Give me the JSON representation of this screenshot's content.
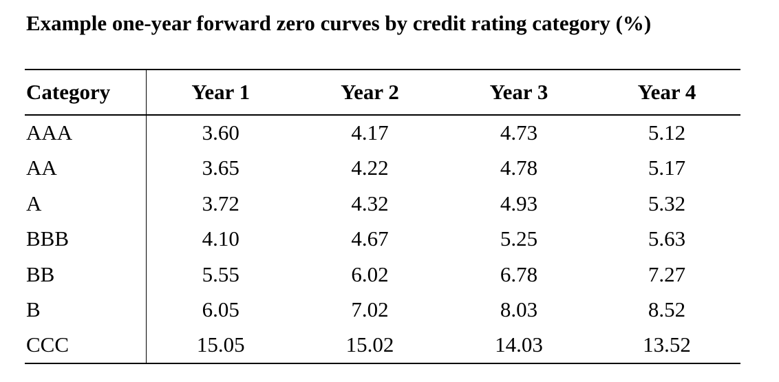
{
  "title": "Example one-year forward zero curves by credit rating category (%)",
  "table": {
    "headers": [
      "Category",
      "Year 1",
      "Year 2",
      "Year 3",
      "Year 4"
    ],
    "rows": [
      {
        "category": "AAA",
        "values": [
          "3.60",
          "4.17",
          "4.73",
          "5.12"
        ]
      },
      {
        "category": "AA",
        "values": [
          "3.65",
          "4.22",
          "4.78",
          "5.17"
        ]
      },
      {
        "category": "A",
        "values": [
          "3.72",
          "4.32",
          "4.93",
          "5.32"
        ]
      },
      {
        "category": "BBB",
        "values": [
          "4.10",
          "4.67",
          "5.25",
          "5.63"
        ]
      },
      {
        "category": "BB",
        "values": [
          "5.55",
          "6.02",
          "6.78",
          "7.27"
        ]
      },
      {
        "category": "B",
        "values": [
          "6.05",
          "7.02",
          "8.03",
          "8.52"
        ]
      },
      {
        "category": "CCC",
        "values": [
          "15.05",
          "15.02",
          "14.03",
          "13.52"
        ]
      }
    ]
  }
}
